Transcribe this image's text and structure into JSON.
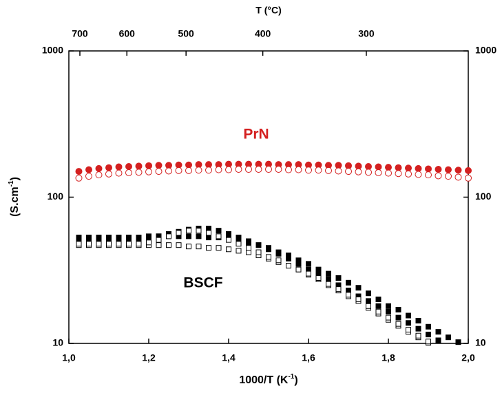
{
  "chart_data": {
    "type": "scatter",
    "x_label": [
      "1000/T (K",
      "-1",
      ")"
    ],
    "y_label": [
      "(S.cm",
      "-1",
      ")"
    ],
    "x2_label": "T (°C)",
    "x2_scale": "celsius-of-1000/T",
    "x2ticks": [
      700,
      600,
      500,
      400,
      300
    ],
    "xlim": [
      1.0,
      2.0
    ],
    "xticks": [
      {
        "value": 1.0,
        "label": "1,0"
      },
      {
        "value": 1.2,
        "label": "1,2"
      },
      {
        "value": 1.4,
        "label": "1,4"
      },
      {
        "value": 1.6,
        "label": "1,6"
      },
      {
        "value": 1.8,
        "label": "1,8"
      },
      {
        "value": 2.0,
        "label": "2,0"
      }
    ],
    "ylim": [
      10,
      1000
    ],
    "yticks": [
      10,
      100,
      1000
    ],
    "log_y": true,
    "annotations": [
      {
        "text": "PrN",
        "color": "#d42020"
      },
      {
        "text": "BSCF",
        "color": "#000000"
      }
    ],
    "x": [
      1.025,
      1.05,
      1.075,
      1.1,
      1.125,
      1.15,
      1.175,
      1.2,
      1.225,
      1.25,
      1.275,
      1.3,
      1.325,
      1.35,
      1.375,
      1.4,
      1.425,
      1.45,
      1.475,
      1.5,
      1.525,
      1.55,
      1.575,
      1.6,
      1.625,
      1.65,
      1.675,
      1.7,
      1.725,
      1.75,
      1.775,
      1.8,
      1.825,
      1.85,
      1.875,
      1.9,
      1.925,
      1.95,
      1.975,
      2.0
    ],
    "series": [
      {
        "color": "#d42020",
        "marker": "circle",
        "filled": true,
        "values": [
          150,
          154,
          157,
          159,
          161,
          162,
          163,
          164,
          165,
          165,
          166,
          166,
          167,
          167,
          167,
          168,
          168,
          168,
          168,
          168,
          167,
          167,
          167,
          166,
          166,
          165,
          165,
          164,
          163,
          162,
          161,
          160,
          159,
          158,
          157,
          156,
          155,
          154,
          153,
          152
        ]
      },
      {
        "color": "#d42020",
        "marker": "circle",
        "filled": false,
        "values": [
          135,
          139,
          142,
          144,
          146,
          147,
          148,
          149,
          150,
          151,
          152,
          152,
          153,
          153,
          154,
          154,
          155,
          155,
          155,
          155,
          155,
          154,
          154,
          153,
          153,
          152,
          151,
          150,
          149,
          148,
          147,
          146,
          145,
          144,
          143,
          142,
          140,
          139,
          137,
          135
        ]
      },
      {
        "color": "#000000",
        "marker": "square",
        "filled": true,
        "values": [
          53,
          53,
          53,
          53,
          53,
          53,
          53,
          54,
          54,
          54,
          54,
          54,
          54,
          53,
          53,
          52,
          51,
          49,
          47,
          45,
          42,
          40,
          37,
          35,
          32,
          30,
          28,
          26,
          24,
          22,
          20,
          18,
          17,
          15.5,
          14.3,
          13,
          12,
          11,
          10.2,
          null
        ]
      },
      {
        "color": "#000000",
        "marker": "square",
        "filled": true,
        "values": [
          52,
          52,
          52,
          52,
          52,
          52,
          52,
          53,
          54,
          56,
          58,
          60,
          61,
          61,
          59,
          56,
          53,
          50,
          47,
          44,
          41,
          38,
          35,
          32,
          30,
          27.5,
          25,
          23,
          21,
          19.5,
          18,
          16.5,
          15,
          13.8,
          12.6,
          11.5,
          10.5,
          null,
          null,
          null
        ]
      },
      {
        "color": "#000000",
        "marker": "square",
        "filled": false,
        "values": [
          47,
          47,
          47,
          47,
          47,
          47,
          47,
          47,
          47,
          47,
          47,
          46,
          46,
          45,
          45,
          44,
          43,
          42,
          40,
          38,
          36,
          34,
          32,
          29.5,
          27.5,
          25,
          23,
          21,
          19.5,
          17.5,
          16,
          14.5,
          13.2,
          12,
          11,
          10.1,
          null,
          null,
          null,
          null
        ]
      },
      {
        "color": "#000000",
        "marker": "square",
        "filled": false,
        "values": [
          48,
          48,
          48,
          48,
          48,
          48,
          48,
          49,
          51,
          54,
          57,
          59,
          59,
          57,
          54,
          51,
          48,
          45,
          42,
          39,
          37,
          34,
          32,
          30,
          28,
          25.5,
          23.5,
          21.5,
          20,
          18,
          16.5,
          15,
          13.6,
          12.4,
          11.3,
          10.3,
          null,
          null,
          null,
          null
        ]
      }
    ]
  }
}
